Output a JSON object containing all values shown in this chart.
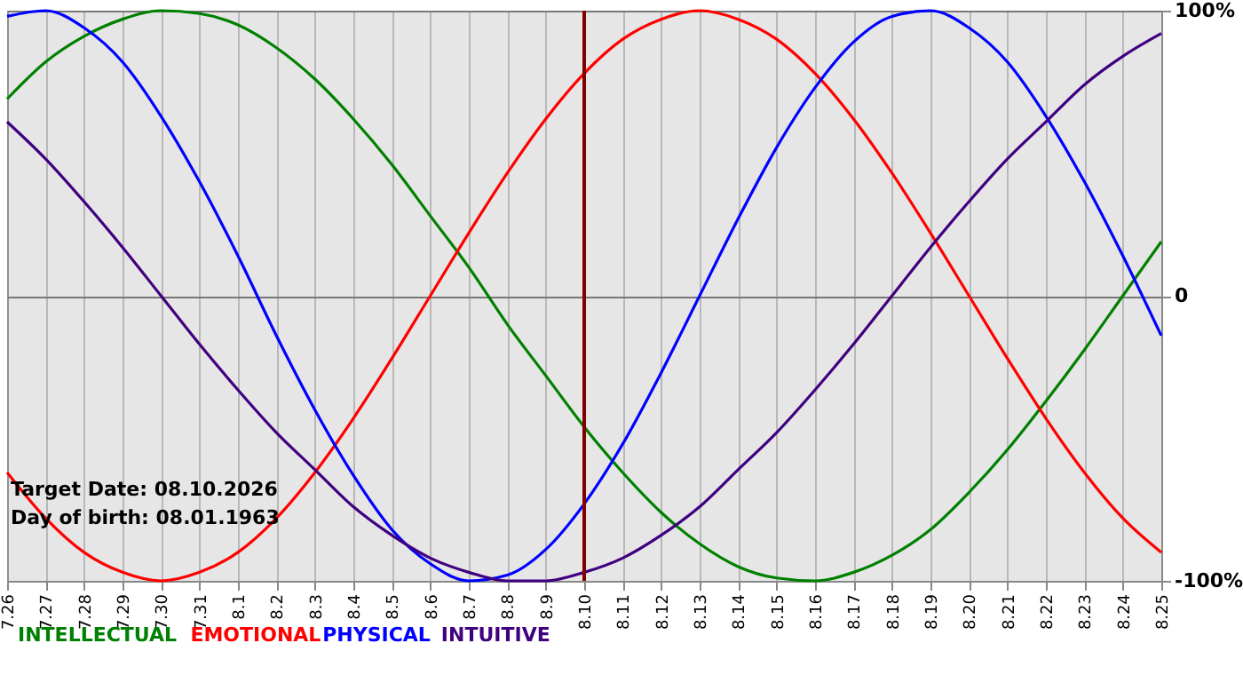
{
  "chart_data": {
    "type": "line",
    "categories": [
      "7.26",
      "7.27",
      "7.28",
      "7.29",
      "7.30",
      "7.31",
      "8.1",
      "8.2",
      "8.3",
      "8.4",
      "8.5",
      "8.6",
      "8.7",
      "8.8",
      "8.9",
      "8.10",
      "8.11",
      "8.12",
      "8.13",
      "8.14",
      "8.15",
      "8.16",
      "8.17",
      "8.18",
      "8.19",
      "8.20",
      "8.21",
      "8.22",
      "8.23",
      "8.24",
      "8.25"
    ],
    "series": [
      {
        "name": "INTELLECTUAL",
        "color": "#008000",
        "values": [
          69,
          82,
          91,
          97,
          100,
          99,
          95,
          87,
          76,
          62,
          46,
          28,
          10,
          -10,
          -28,
          -46,
          -62,
          -76,
          -87,
          -95,
          -99,
          -100,
          -97,
          -91,
          -82,
          -69,
          -54,
          -37,
          -19,
          0,
          19
        ]
      },
      {
        "name": "EMOTIONAL",
        "color": "#ff0000",
        "values": [
          -62,
          -78,
          -90,
          -97,
          -100,
          -97,
          -90,
          -78,
          -62,
          -43,
          -22,
          0,
          22,
          43,
          62,
          78,
          90,
          97,
          100,
          97,
          90,
          78,
          62,
          43,
          22,
          0,
          -22,
          -43,
          -62,
          -78,
          -90
        ]
      },
      {
        "name": "PHYSICAL",
        "color": "#0000ff",
        "values": [
          98,
          100,
          94,
          82,
          63,
          40,
          14,
          -14,
          -40,
          -63,
          -82,
          -94,
          -100,
          -98,
          -89,
          -73,
          -52,
          -27,
          0,
          27,
          52,
          73,
          89,
          98,
          100,
          94,
          82,
          63,
          40,
          14,
          -14
        ]
      },
      {
        "name": "INTUITIVE",
        "color": "#400080",
        "values": [
          61,
          48,
          33,
          17,
          0,
          -17,
          -33,
          -48,
          -61,
          -74,
          -84,
          -92,
          -97,
          -100,
          -100,
          -97,
          -92,
          -84,
          -74,
          -61,
          -48,
          -33,
          -17,
          0,
          17,
          33,
          48,
          61,
          74,
          84,
          92
        ]
      }
    ],
    "ylim": [
      -100,
      100
    ],
    "yticks": [
      {
        "value": 100,
        "label": "100%"
      },
      0,
      {
        "value": -100,
        "label": "-100%"
      }
    ],
    "grid": true,
    "legend": "bottom",
    "ref_lines": [
      {
        "axis": "x",
        "value": "8.10",
        "color": "#800000"
      }
    ],
    "annotations": [
      "Target Date: 08.10.2026",
      "Day of birth: 08.01.1963"
    ]
  }
}
